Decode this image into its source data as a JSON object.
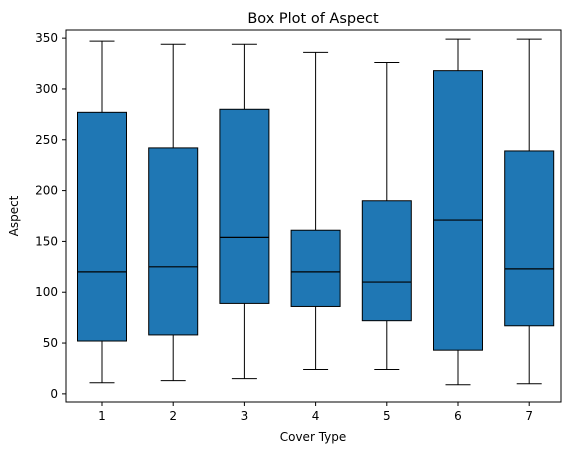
{
  "chart_data": {
    "type": "box",
    "title": "Box Plot of Aspect",
    "xlabel": "Cover Type",
    "ylabel": "Aspect",
    "categories": [
      "1",
      "2",
      "3",
      "4",
      "5",
      "6",
      "7"
    ],
    "ylim": [
      -8,
      358
    ],
    "yticks": [
      0,
      50,
      100,
      150,
      200,
      250,
      300,
      350
    ],
    "grid": false,
    "colors": {
      "box_fill": "#1f77b4",
      "line": "#000000"
    },
    "boxes": [
      {
        "category": "1",
        "whisker_low": 11,
        "q1": 52,
        "median": 120,
        "q3": 277,
        "whisker_high": 347
      },
      {
        "category": "2",
        "whisker_low": 13,
        "q1": 58,
        "median": 125,
        "q3": 242,
        "whisker_high": 344
      },
      {
        "category": "3",
        "whisker_low": 15,
        "q1": 89,
        "median": 154,
        "q3": 280,
        "whisker_high": 344
      },
      {
        "category": "4",
        "whisker_low": 24,
        "q1": 86,
        "median": 120,
        "q3": 161,
        "whisker_high": 336
      },
      {
        "category": "5",
        "whisker_low": 24,
        "q1": 72,
        "median": 110,
        "q3": 190,
        "whisker_high": 326
      },
      {
        "category": "6",
        "whisker_low": 9,
        "q1": 43,
        "median": 171,
        "q3": 318,
        "whisker_high": 349
      },
      {
        "category": "7",
        "whisker_low": 10,
        "q1": 67,
        "median": 123,
        "q3": 239,
        "whisker_high": 349
      }
    ]
  }
}
